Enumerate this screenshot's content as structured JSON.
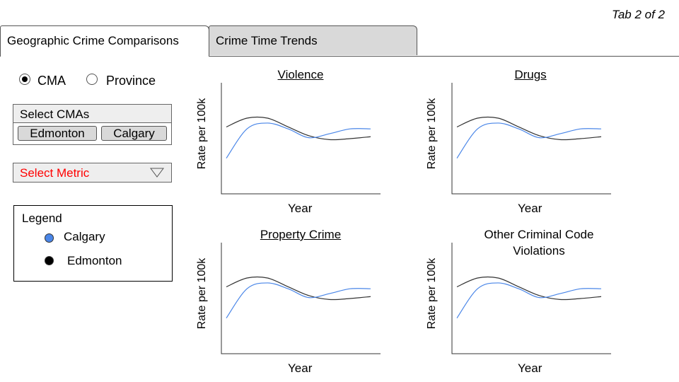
{
  "tab_indicator": "Tab 2 of 2",
  "tabs": [
    {
      "label": "Geographic Crime Comparisons",
      "active": true
    },
    {
      "label": "Crime Time Trends",
      "active": false
    }
  ],
  "geo_options": [
    {
      "label": "CMA",
      "selected": true
    },
    {
      "label": "Province",
      "selected": false
    }
  ],
  "select_cmas": {
    "label": "Select CMAs",
    "chips": [
      "Edmonton",
      "Calgary"
    ]
  },
  "metric": {
    "placeholder": "Select Metric",
    "color": "#ff0000"
  },
  "legend": {
    "title": "Legend",
    "items": [
      {
        "label": "Calgary",
        "color": "#4a86e8"
      },
      {
        "label": "Edmonton",
        "color": "#000000"
      }
    ]
  },
  "charts": [
    {
      "title": "Violence",
      "ylabel": "Rate per 100k",
      "xlabel": "Year"
    },
    {
      "title": "Drugs",
      "ylabel": "Rate per 100k",
      "xlabel": "Year"
    },
    {
      "title": "Property Crime",
      "ylabel": "Rate per 100k",
      "xlabel": "Year"
    },
    {
      "title": "Other Criminal Code Violations",
      "ylabel": "Rate per 100k",
      "xlabel": "Year"
    }
  ],
  "chart_data": [
    {
      "type": "line",
      "title": "Violence",
      "xlabel": "Year",
      "ylabel": "Rate per 100k",
      "series": [
        {
          "name": "Edmonton",
          "color": "#333333",
          "values": [
            62,
            71,
            71,
            62,
            53,
            49,
            50,
            52
          ]
        },
        {
          "name": "Calgary",
          "color": "#4a86e8",
          "values": [
            30,
            60,
            66,
            60,
            51,
            55,
            60,
            60
          ]
        }
      ]
    },
    {
      "type": "line",
      "title": "Drugs",
      "xlabel": "Year",
      "ylabel": "Rate per 100k",
      "series": [
        {
          "name": "Edmonton",
          "color": "#333333",
          "values": [
            62,
            71,
            71,
            62,
            53,
            49,
            50,
            52
          ]
        },
        {
          "name": "Calgary",
          "color": "#4a86e8",
          "values": [
            30,
            60,
            66,
            60,
            51,
            55,
            60,
            60
          ]
        }
      ]
    },
    {
      "type": "line",
      "title": "Property Crime",
      "xlabel": "Year",
      "ylabel": "Rate per 100k",
      "series": [
        {
          "name": "Edmonton",
          "color": "#333333",
          "values": [
            62,
            71,
            71,
            62,
            53,
            49,
            50,
            52
          ]
        },
        {
          "name": "Calgary",
          "color": "#4a86e8",
          "values": [
            30,
            60,
            66,
            60,
            51,
            55,
            60,
            60
          ]
        }
      ]
    },
    {
      "type": "line",
      "title": "Other Criminal Code Violations",
      "xlabel": "Year",
      "ylabel": "Rate per 100k",
      "series": [
        {
          "name": "Edmonton",
          "color": "#333333",
          "values": [
            62,
            71,
            71,
            62,
            53,
            49,
            50,
            52
          ]
        },
        {
          "name": "Calgary",
          "color": "#4a86e8",
          "values": [
            30,
            60,
            66,
            60,
            51,
            55,
            60,
            60
          ]
        }
      ]
    }
  ]
}
